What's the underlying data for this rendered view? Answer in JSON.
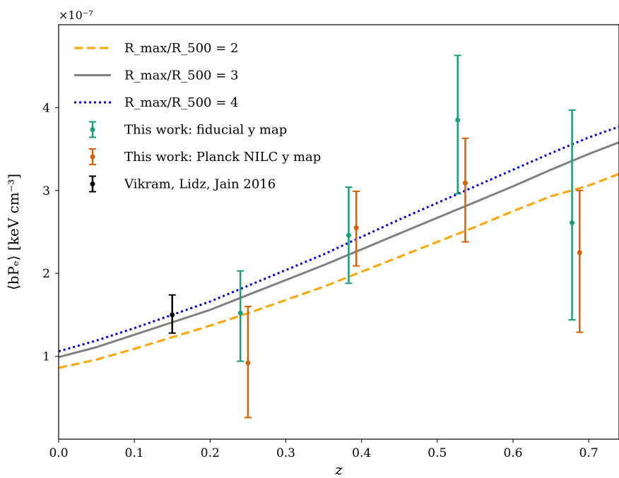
{
  "chart_data": {
    "type": "line",
    "title": "",
    "xlabel": "z",
    "ylabel": "⟨bPₑ⟩ [keV cm⁻³]",
    "y_multiplier": "×10⁻⁷",
    "xlim": [
      0.0,
      0.74
    ],
    "ylim": [
      0.0,
      5.0
    ],
    "x_ticks": [
      0.0,
      0.1,
      0.2,
      0.3,
      0.4,
      0.5,
      0.6,
      0.7
    ],
    "x_tick_labels": [
      "0.0",
      "0.1",
      "0.2",
      "0.3",
      "0.4",
      "0.5",
      "0.6",
      "0.7"
    ],
    "y_ticks": [
      1,
      2,
      3,
      4
    ],
    "y_tick_labels": [
      "1",
      "2",
      "3",
      "4"
    ],
    "grid": false,
    "legend_position": "top-left",
    "lines": [
      {
        "name": "Rmax/R500 = 2",
        "color": "#FFA500",
        "style": "dashed",
        "x": [
          0.0,
          0.05,
          0.1,
          0.15,
          0.2,
          0.25,
          0.3,
          0.35,
          0.4,
          0.45,
          0.5,
          0.55,
          0.6,
          0.65,
          0.7,
          0.74
        ],
        "y": [
          0.86,
          0.96,
          1.09,
          1.23,
          1.37,
          1.52,
          1.68,
          1.84,
          2.02,
          2.2,
          2.38,
          2.56,
          2.75,
          2.93,
          3.06,
          3.2
        ]
      },
      {
        "name": "Rmax/R500 = 3",
        "color": "#808080",
        "style": "solid",
        "x": [
          0.0,
          0.05,
          0.1,
          0.15,
          0.2,
          0.25,
          0.3,
          0.35,
          0.4,
          0.45,
          0.5,
          0.55,
          0.6,
          0.65,
          0.7,
          0.74
        ],
        "y": [
          0.99,
          1.11,
          1.26,
          1.41,
          1.56,
          1.74,
          1.92,
          2.1,
          2.29,
          2.48,
          2.67,
          2.86,
          3.05,
          3.25,
          3.44,
          3.58
        ]
      },
      {
        "name": "Rmax/R500 = 4",
        "color": "#0000DD",
        "style": "dotted",
        "x": [
          0.0,
          0.05,
          0.1,
          0.15,
          0.2,
          0.25,
          0.3,
          0.35,
          0.4,
          0.45,
          0.5,
          0.55,
          0.6,
          0.65,
          0.7,
          0.74
        ],
        "y": [
          1.06,
          1.19,
          1.34,
          1.5,
          1.66,
          1.85,
          2.04,
          2.23,
          2.44,
          2.65,
          2.85,
          3.05,
          3.25,
          3.45,
          3.64,
          3.77
        ]
      }
    ],
    "errorbars": [
      {
        "name": "This work: fiducial y map",
        "color": "#1A9E77",
        "x": [
          0.24,
          0.383,
          0.527,
          0.678
        ],
        "y": [
          1.52,
          2.46,
          3.85,
          2.61
        ],
        "yerr_low": [
          0.58,
          0.58,
          0.89,
          1.17
        ],
        "yerr_high": [
          0.51,
          0.58,
          0.78,
          1.36
        ]
      },
      {
        "name": "This work: Planck NILC y map",
        "color": "#D95F02",
        "x": [
          0.25,
          0.393,
          0.537,
          0.688
        ],
        "y": [
          0.92,
          2.55,
          3.09,
          2.25
        ],
        "yerr_low": [
          0.66,
          0.46,
          0.71,
          0.96
        ],
        "yerr_high": [
          0.68,
          0.44,
          0.54,
          0.75
        ]
      },
      {
        "name": "Vikram, Lidz, Jain 2016",
        "color": "#000000",
        "x": [
          0.15
        ],
        "y": [
          1.5
        ],
        "yerr_low": [
          0.22
        ],
        "yerr_high": [
          0.24
        ]
      }
    ],
    "legend": {
      "items": [
        {
          "text": "R_max/R_500 = 2",
          "line_ref": 0
        },
        {
          "text": "R_max/R_500 = 3",
          "line_ref": 1
        },
        {
          "text": "R_max/R_500 = 4",
          "line_ref": 2
        },
        {
          "text": "This work:  fiducial y map",
          "err_ref": 0
        },
        {
          "text": "This work:  Planck NILC y map",
          "err_ref": 1
        },
        {
          "text": "Vikram, Lidz, Jain 2016",
          "err_ref": 2
        }
      ]
    }
  }
}
